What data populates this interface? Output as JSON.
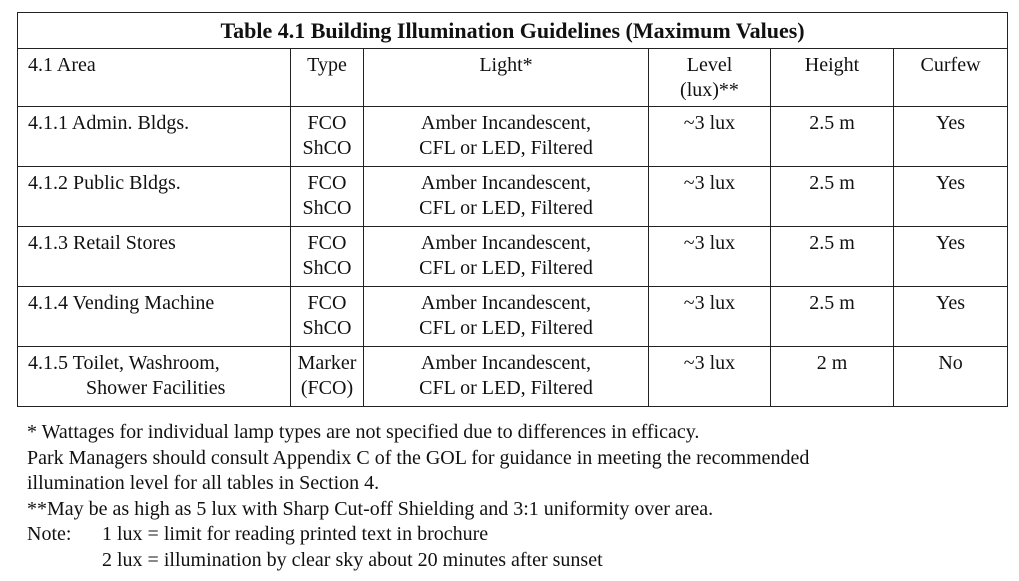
{
  "table": {
    "title": "Table 4.1 Building Illumination Guidelines (Maximum Values)",
    "header": [
      [
        "4.1 Area"
      ],
      [
        "Type"
      ],
      [
        "Light*"
      ],
      [
        "Level",
        "(lux)**"
      ],
      [
        "Height"
      ],
      [
        "Curfew"
      ]
    ],
    "rows": [
      [
        [
          "4.1.1 Admin. Bldgs."
        ],
        [
          "FCO",
          "ShCO"
        ],
        [
          "Amber Incandescent,",
          "CFL or LED, Filtered"
        ],
        [
          "~3 lux"
        ],
        [
          "2.5 m"
        ],
        [
          "Yes"
        ]
      ],
      [
        [
          "4.1.2 Public Bldgs."
        ],
        [
          "FCO",
          "ShCO"
        ],
        [
          "Amber Incandescent,",
          "CFL or LED, Filtered"
        ],
        [
          "~3 lux"
        ],
        [
          "2.5 m"
        ],
        [
          "Yes"
        ]
      ],
      [
        [
          "4.1.3 Retail Stores"
        ],
        [
          "FCO",
          "ShCO"
        ],
        [
          "Amber Incandescent,",
          "CFL or LED, Filtered"
        ],
        [
          "~3 lux"
        ],
        [
          "2.5 m"
        ],
        [
          "Yes"
        ]
      ],
      [
        [
          "4.1.4 Vending Machine"
        ],
        [
          "FCO",
          "ShCO"
        ],
        [
          "Amber Incandescent,",
          "CFL or LED, Filtered"
        ],
        [
          "~3 lux"
        ],
        [
          "2.5 m"
        ],
        [
          "Yes"
        ]
      ],
      [
        [
          "4.1.5 Toilet, Washroom,",
          "Shower Facilities"
        ],
        [
          "Marker",
          "(FCO)"
        ],
        [
          "Amber Incandescent,",
          "CFL or LED, Filtered"
        ],
        [
          "~3 lux"
        ],
        [
          "2 m"
        ],
        [
          "No"
        ]
      ]
    ]
  },
  "notes": {
    "lines": [
      "* Wattages for individual lamp types are not specified due to differences in efficacy.",
      "Park Managers should consult Appendix C of the GOL for guidance in meeting the recommended",
      "illumination level for all tables in Section 4.",
      "**May be as high as 5 lux with Sharp Cut-off Shielding and 3:1 uniformity over area."
    ],
    "note_label": "Note:",
    "note_items": [
      "1 lux = limit for reading printed text in brochure",
      "2 lux = illumination by clear sky about 20 minutes after sunset"
    ]
  }
}
